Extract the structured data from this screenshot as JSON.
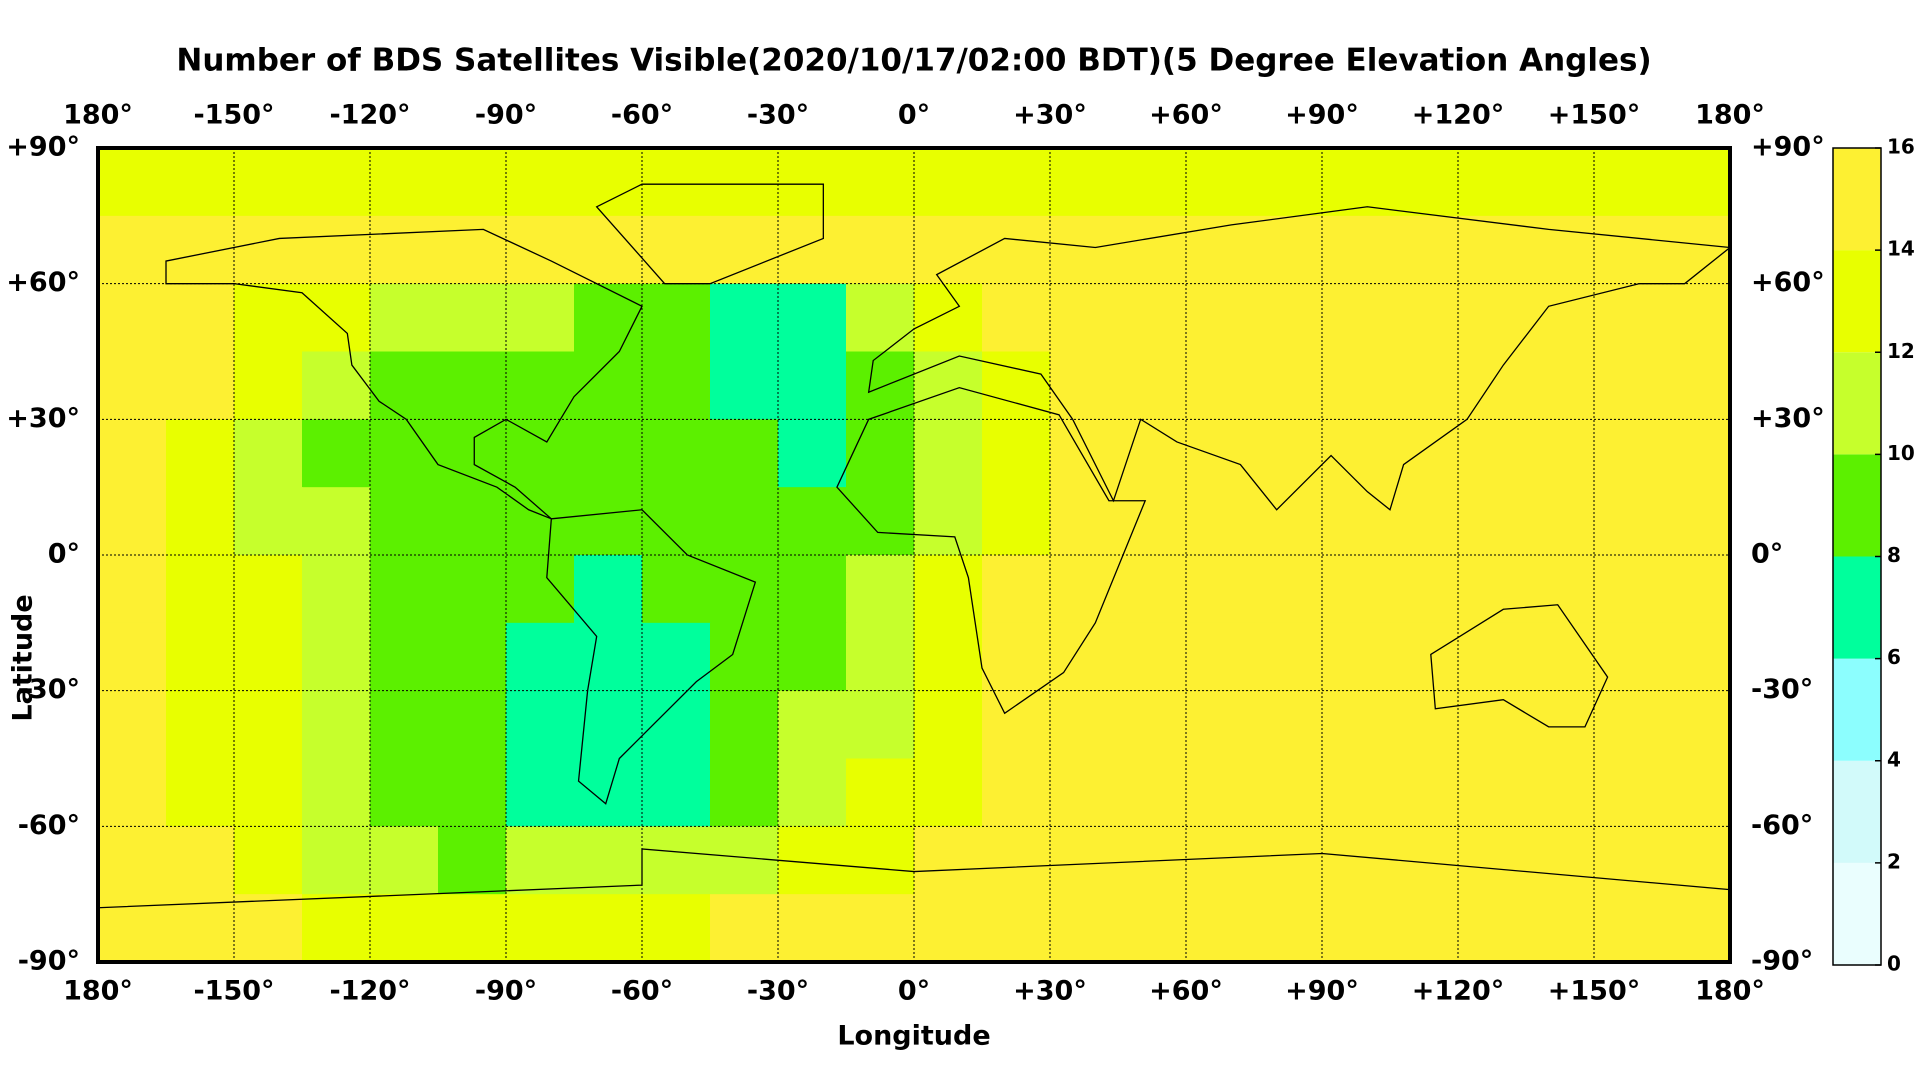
{
  "chart_data": {
    "type": "heatmap",
    "title": "Number of BDS Satellites Visible(2020/10/17/02:00 BDT)(5 Degree Elevation Angles)",
    "xlabel": "Longitude",
    "ylabel": "Latitude",
    "xlim": [
      -180,
      180
    ],
    "ylim": [
      -90,
      90
    ],
    "xticks": [
      {
        "value": -180,
        "label": "180°"
      },
      {
        "value": -150,
        "label": "-150°"
      },
      {
        "value": -120,
        "label": "-120°"
      },
      {
        "value": -90,
        "label": "-90°"
      },
      {
        "value": -60,
        "label": "-60°"
      },
      {
        "value": -30,
        "label": "-30°"
      },
      {
        "value": 0,
        "label": "0°"
      },
      {
        "value": 30,
        "label": "+30°"
      },
      {
        "value": 60,
        "label": "+60°"
      },
      {
        "value": 90,
        "label": "+90°"
      },
      {
        "value": 120,
        "label": "+120°"
      },
      {
        "value": 150,
        "label": "+150°"
      },
      {
        "value": 180,
        "label": "180°"
      }
    ],
    "yticks": [
      {
        "value": 90,
        "label": "+90°"
      },
      {
        "value": 60,
        "label": "+60°"
      },
      {
        "value": 30,
        "label": "+30°"
      },
      {
        "value": 0,
        "label": "0°"
      },
      {
        "value": -30,
        "label": "-30°"
      },
      {
        "value": -60,
        "label": "-60°"
      },
      {
        "value": -90,
        "label": "-90°"
      }
    ],
    "grid": true,
    "levels": [
      0,
      2,
      4,
      6,
      8,
      10,
      12,
      14,
      16
    ],
    "colors": [
      "#eafefe",
      "#d2fafa",
      "#8cfefe",
      "#00ff9c",
      "#5cf000",
      "#c6ff2c",
      "#e8ff00",
      "#fdf032"
    ],
    "z": [
      [
        13,
        13,
        13,
        13,
        13,
        13,
        13,
        13,
        13,
        13,
        13,
        13,
        13,
        13,
        13,
        13,
        13,
        13,
        13,
        13,
        13,
        13,
        13,
        13
      ],
      [
        15,
        15,
        15,
        15,
        15,
        15,
        15,
        15,
        15,
        15,
        15,
        15,
        15,
        15,
        15,
        15,
        15,
        15,
        15,
        15,
        15,
        15,
        15,
        15
      ],
      [
        15,
        15,
        13,
        13,
        11,
        11,
        11,
        9,
        9,
        7,
        7,
        11,
        13,
        15,
        15,
        15,
        15,
        15,
        15,
        15,
        15,
        15,
        15,
        15
      ],
      [
        15,
        15,
        13,
        11,
        9,
        9,
        9,
        9,
        9,
        7,
        7,
        9,
        11,
        13,
        15,
        15,
        15,
        15,
        15,
        15,
        15,
        15,
        15,
        15
      ],
      [
        15,
        13,
        11,
        9,
        9,
        9,
        9,
        9,
        9,
        9,
        7,
        9,
        11,
        13,
        15,
        15,
        15,
        15,
        15,
        15,
        15,
        15,
        15,
        15
      ],
      [
        15,
        13,
        11,
        11,
        9,
        9,
        9,
        9,
        9,
        9,
        9,
        9,
        11,
        13,
        15,
        15,
        15,
        15,
        15,
        15,
        15,
        15,
        15,
        15
      ],
      [
        15,
        13,
        13,
        11,
        9,
        9,
        9,
        7,
        9,
        9,
        9,
        11,
        13,
        15,
        15,
        15,
        15,
        15,
        15,
        15,
        15,
        15,
        15,
        15
      ],
      [
        15,
        13,
        13,
        11,
        9,
        9,
        7,
        7,
        7,
        9,
        9,
        11,
        13,
        15,
        15,
        15,
        15,
        15,
        15,
        15,
        15,
        15,
        15,
        15
      ],
      [
        15,
        13,
        13,
        11,
        9,
        9,
        7,
        7,
        7,
        9,
        11,
        11,
        13,
        15,
        15,
        15,
        15,
        15,
        15,
        15,
        15,
        15,
        15,
        15
      ],
      [
        15,
        13,
        13,
        11,
        9,
        9,
        7,
        7,
        7,
        9,
        11,
        13,
        13,
        15,
        15,
        15,
        15,
        15,
        15,
        15,
        15,
        15,
        15,
        15
      ],
      [
        15,
        15,
        13,
        11,
        11,
        9,
        11,
        11,
        11,
        11,
        13,
        13,
        15,
        15,
        15,
        15,
        15,
        15,
        15,
        15,
        15,
        15,
        15,
        15
      ],
      [
        15,
        15,
        15,
        13,
        13,
        13,
        13,
        13,
        13,
        15,
        15,
        15,
        15,
        15,
        15,
        15,
        15,
        15,
        15,
        15,
        15,
        15,
        15,
        15
      ]
    ]
  }
}
